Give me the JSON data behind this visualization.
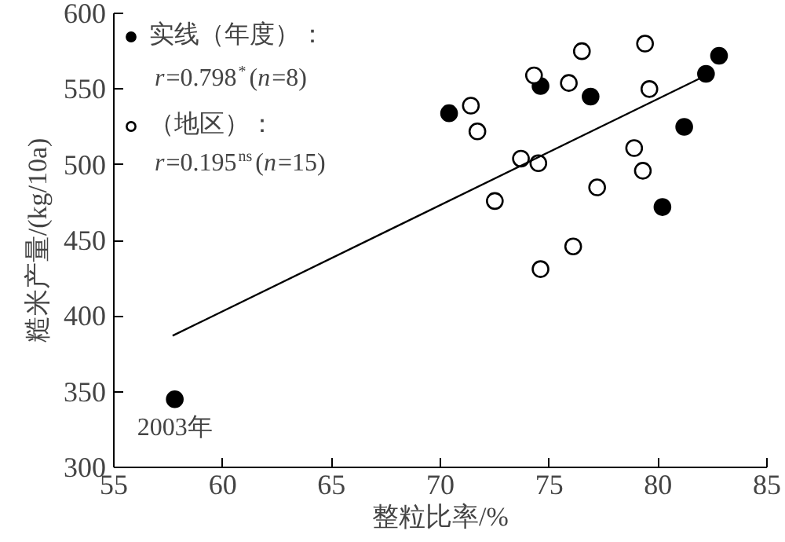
{
  "chart_data": {
    "type": "scatter",
    "xlabel": "整粒比率/%",
    "ylabel": "糙米产量/(kg/10a)",
    "xlim": [
      55,
      85
    ],
    "xticks": [
      55,
      60,
      65,
      70,
      75,
      80,
      85
    ],
    "ylim": [
      300,
      600
    ],
    "yticks": [
      300,
      350,
      400,
      450,
      500,
      550,
      600
    ],
    "grid": false,
    "legend": "top left",
    "series": [
      {
        "name": "实线（年度）：",
        "color": "#000000",
        "marker": "circle",
        "x": [
          70.4,
          74.6,
          76.9,
          81.2,
          80.2,
          82.2,
          82.8,
          57.8
        ],
        "values": [
          534,
          552,
          545,
          525,
          472,
          560,
          572,
          345
        ]
      },
      {
        "name": "（地区）：",
        "color": "#ffffff",
        "marker": "circle",
        "x": [
          71.4,
          71.7,
          74.3,
          76.5,
          75.9,
          79.4,
          79.6,
          73.7,
          74.5,
          78.9,
          79.3,
          77.2,
          72.5,
          76.1,
          74.6
        ],
        "values": [
          539,
          522,
          559,
          575,
          554,
          580,
          550,
          504,
          501,
          511,
          496,
          485,
          476,
          446,
          431
        ]
      },
      {
        "type": "line",
        "color": "#000000",
        "x": [
          57.7,
          82.2
        ],
        "values": [
          387,
          559
        ]
      }
    ],
    "annotations": [
      "r=0.798$^{*}$(n=8)",
      "r=0.195$^{ns}$(n=15)",
      {
        "text": "2003年",
        "x": 57.8,
        "y": 345
      }
    ]
  }
}
